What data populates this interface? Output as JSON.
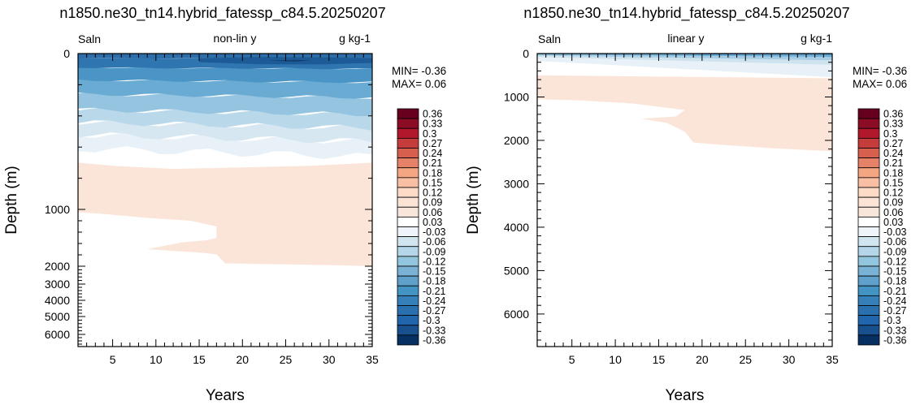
{
  "chart_data": [
    {
      "type": "heatmap",
      "title": "n1850.ne30_tn14.hybrid_fatessp_c84.5.20250207",
      "left_label": "Saln",
      "center_label": "non-lin y",
      "right_label": "g kg-1",
      "xlabel": "Years",
      "ylabel": "Depth (m)",
      "xlim": [
        1,
        35
      ],
      "ylim": [
        0,
        6750
      ],
      "y_scale": "nonlinear",
      "x_ticks": [
        "5",
        "10",
        "15",
        "20",
        "25",
        "30",
        "35"
      ],
      "y_ticks": [
        "0",
        "1000",
        "2000",
        "3000",
        "4000",
        "5000",
        "6000"
      ],
      "min_text": "MIN= -0.36",
      "max_text": "MAX=  0.06",
      "colorbar_labels": [
        "0.36",
        "0.33",
        "0.3",
        "0.27",
        "0.24",
        "0.21",
        "0.18",
        "0.15",
        "0.12",
        "0.09",
        "0.06",
        "0.03",
        "-0.03",
        "-0.06",
        "-0.09",
        "-0.12",
        "-0.15",
        "-0.18",
        "-0.21",
        "-0.24",
        "-0.27",
        "-0.3",
        "-0.33",
        "-0.36"
      ],
      "colorbar_colors": [
        "#67001f",
        "#8c0c25",
        "#b2182b",
        "#c43c3c",
        "#d6604d",
        "#e58267",
        "#f4a582",
        "#f8bfa4",
        "#fddbc7",
        "#fbe3d6",
        "#f9e6db",
        "#ffffff",
        "#eef4f9",
        "#d1e5f0",
        "#b4d6e8",
        "#92c5de",
        "#79b2d4",
        "#5fa1ca",
        "#4393c3",
        "#3580b8",
        "#2a6fae",
        "#2166ac",
        "#17508d",
        "#053061"
      ],
      "contour_regions": [
        {
          "level": "0 to 0.06",
          "depth_top_m": 700,
          "depth_bottom_m": 1600,
          "description_years": [
            1,
            35
          ]
        },
        {
          "level": "-0.36 to 0",
          "depth_top_m": 0,
          "depth_bottom_m": 600,
          "description_years": [
            1,
            35
          ]
        }
      ]
    },
    {
      "type": "heatmap",
      "title": "n1850.ne30_tn14.hybrid_fatessp_c84.5.20250207",
      "left_label": "Saln",
      "center_label": "linear y",
      "right_label": "g kg-1",
      "xlabel": "Years",
      "ylabel": "Depth (m)",
      "xlim": [
        1,
        35
      ],
      "ylim": [
        0,
        6750
      ],
      "y_scale": "linear",
      "x_ticks": [
        "5",
        "10",
        "15",
        "20",
        "25",
        "30",
        "35"
      ],
      "y_ticks": [
        "0",
        "1000",
        "2000",
        "3000",
        "4000",
        "5000",
        "6000"
      ],
      "min_text": "MIN= -0.36",
      "max_text": "MAX=  0.06",
      "colorbar_labels": [
        "0.36",
        "0.33",
        "0.3",
        "0.27",
        "0.24",
        "0.21",
        "0.18",
        "0.15",
        "0.12",
        "0.09",
        "0.06",
        "0.03",
        "-0.03",
        "-0.06",
        "-0.09",
        "-0.12",
        "-0.15",
        "-0.18",
        "-0.21",
        "-0.24",
        "-0.27",
        "-0.3",
        "-0.33",
        "-0.36"
      ],
      "colorbar_colors": [
        "#67001f",
        "#8c0c25",
        "#b2182b",
        "#c43c3c",
        "#d6604d",
        "#e58267",
        "#f4a582",
        "#f8bfa4",
        "#fddbc7",
        "#fbe3d6",
        "#f9e6db",
        "#ffffff",
        "#eef4f9",
        "#d1e5f0",
        "#b4d6e8",
        "#92c5de",
        "#79b2d4",
        "#5fa1ca",
        "#4393c3",
        "#3580b8",
        "#2a6fae",
        "#2166ac",
        "#17508d",
        "#053061"
      ]
    }
  ]
}
